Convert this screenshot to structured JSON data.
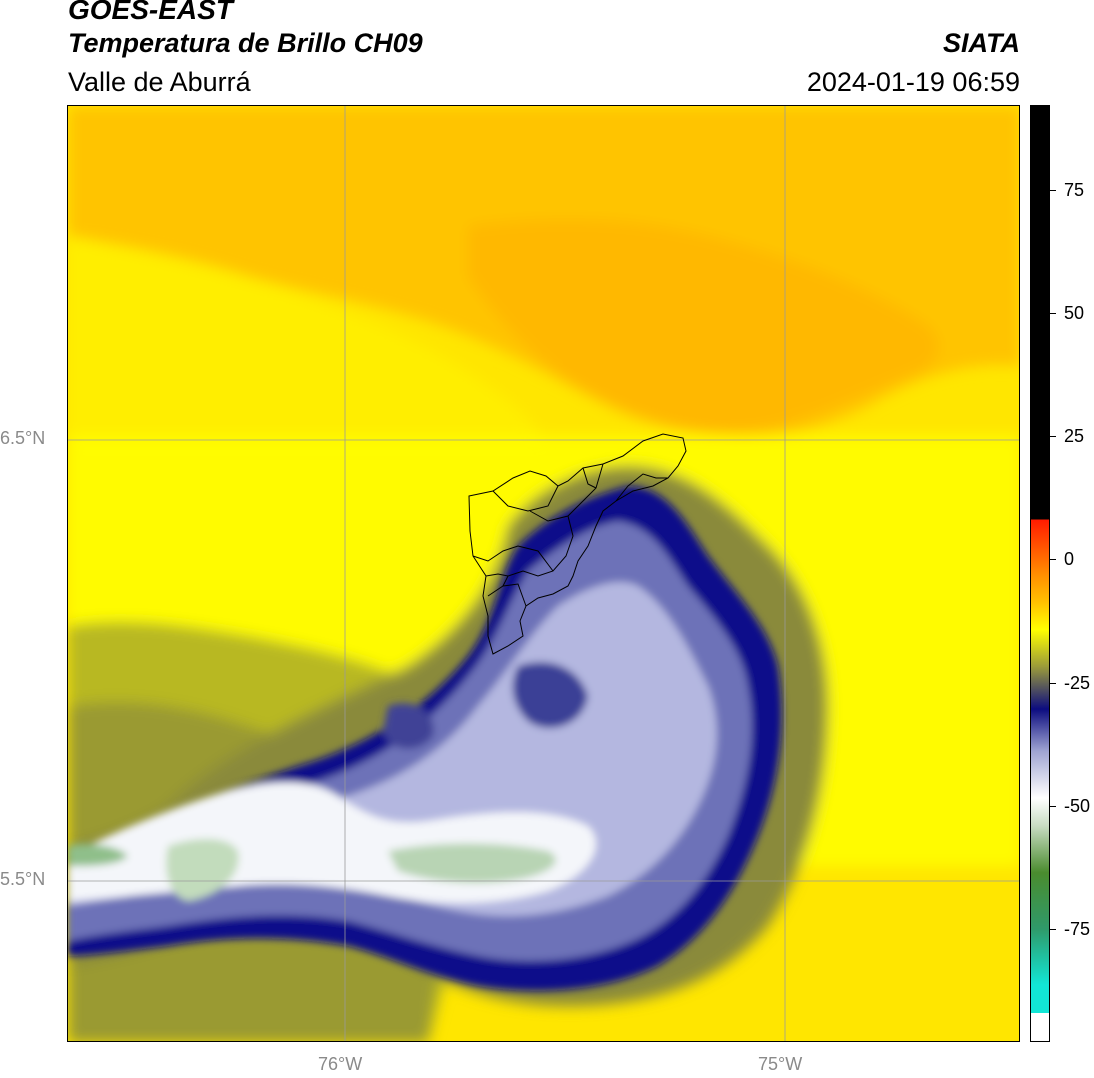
{
  "header": {
    "satellite": "GOES-EAST",
    "product": "Temperatura de Brillo CH09",
    "source": "SIATA",
    "region": "Valle de Aburrá",
    "datetime": "2024-01-19 06:59"
  },
  "map": {
    "lat_labels": [
      "6.5°N",
      "5.5°N"
    ],
    "lon_labels": [
      "76°W",
      "75°W"
    ],
    "features": [
      "brightness-temperature-field",
      "convective-cloud-cluster",
      "municipal-boundaries",
      "graticule"
    ]
  },
  "colorbar": {
    "ticks": [
      "75",
      "50",
      "25",
      "0",
      "-25",
      "-50",
      "-75"
    ],
    "colors": {
      "cyan": "#12e6d6",
      "teal_green": "#2f9a6a",
      "green": "#4a8c2e",
      "light_green": "#c8dcc2",
      "white": "#ffffff",
      "lavender": "#9fa4d2",
      "navy": "#0c0c80",
      "olive": "#9a9a3a",
      "yellow": "#ffff00",
      "orange": "#ff8c00",
      "red": "#ff1a00",
      "black": "#000000"
    }
  }
}
